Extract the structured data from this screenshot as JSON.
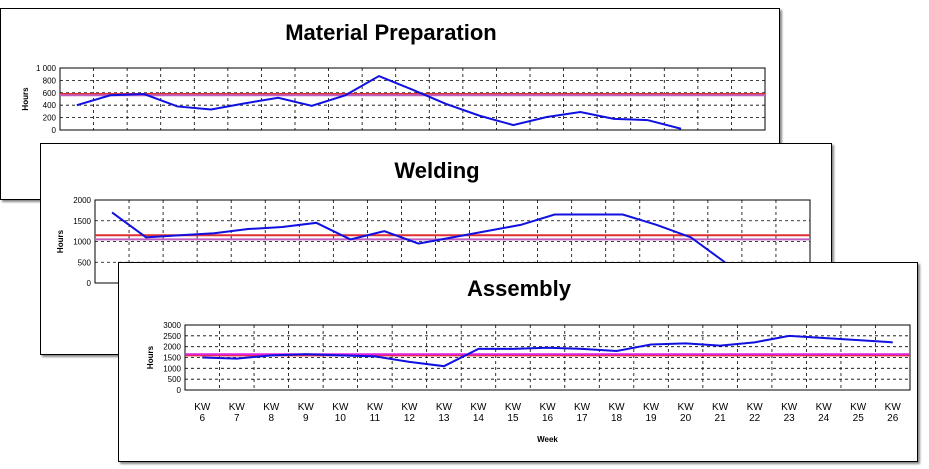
{
  "chart_data": [
    {
      "type": "line",
      "title": "Material Preparation",
      "y_label": "Hours",
      "series": [
        {
          "color": "#1010e0",
          "values": [
            400,
            560,
            580,
            380,
            330,
            430,
            520,
            390,
            560,
            870,
            650,
            420,
            230,
            80,
            210,
            290,
            180,
            160,
            20,
            null,
            null
          ]
        }
      ],
      "reference_lines": [
        {
          "value": 580,
          "color": "#e03030"
        },
        {
          "value": 560,
          "color": "#c060c0"
        }
      ],
      "ylim": [
        0,
        1000
      ],
      "yticks": [
        0,
        200,
        400,
        600,
        800,
        {
          "value": 1000,
          "label": "1 000"
        }
      ],
      "grid": true
    },
    {
      "type": "line",
      "title": "Welding",
      "y_label": "Hours",
      "series": [
        {
          "color": "#1010e0",
          "values": [
            1700,
            1100,
            1150,
            1200,
            1300,
            1350,
            1450,
            1050,
            1250,
            950,
            1100,
            1250,
            1400,
            1650,
            1650,
            1650,
            1400,
            1100,
            500,
            null,
            null
          ]
        }
      ],
      "reference_lines": [
        {
          "value": 1150,
          "color": "#e03030"
        },
        {
          "value": 1050,
          "color": "#c060c0"
        }
      ],
      "ylim": [
        0,
        2000
      ],
      "yticks": [
        0,
        500,
        1000,
        1500,
        2000
      ],
      "grid": true
    },
    {
      "type": "line",
      "title": "Assembly",
      "y_label": "Hours",
      "x_label": "Week",
      "categories": [
        "KW 6",
        "KW 7",
        "KW 8",
        "KW 9",
        "KW 10",
        "KW 11",
        "KW 12",
        "KW 13",
        "KW 14",
        "KW 15",
        "KW 16",
        "KW 17",
        "KW 18",
        "KW 19",
        "KW 20",
        "KW 21",
        "KW 22",
        "KW 23",
        "KW 24",
        "KW 25",
        "KW 26"
      ],
      "series": [
        {
          "color": "#1010e0",
          "values": [
            1500,
            1450,
            1600,
            1650,
            1600,
            1550,
            1300,
            1100,
            1900,
            1900,
            1950,
            1900,
            1800,
            2100,
            2150,
            2050,
            2200,
            2500,
            2400,
            2300,
            2200
          ]
        }
      ],
      "reference_lines": [
        {
          "value": 1600,
          "color": "#e03030"
        },
        {
          "value": 1650,
          "color": "#e020e0"
        }
      ],
      "ylim": [
        0,
        3000
      ],
      "yticks": [
        0,
        500,
        1000,
        1500,
        2000,
        2500,
        3000
      ],
      "grid": true
    }
  ]
}
